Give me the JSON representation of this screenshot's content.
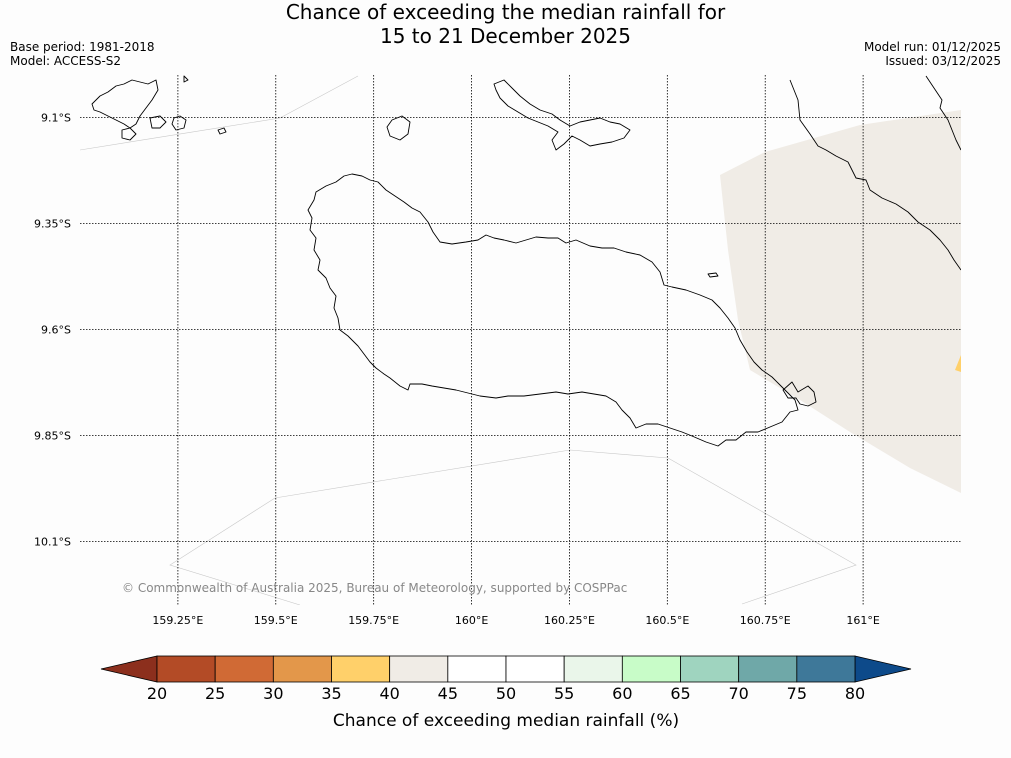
{
  "title": {
    "line1": "Chance of exceeding the median rainfall for",
    "line2": "15 to 21 December 2025"
  },
  "meta_left": {
    "base_period": "Base period: 1981-2018",
    "model": "Model: ACCESS-S2"
  },
  "meta_right": {
    "model_run": "Model run: 01/12/2025",
    "issued": "Issued: 03/12/2025"
  },
  "copyright": "© Commonwealth of Australia 2025, Bureau of Meteorology, supported by COSPPac",
  "map": {
    "lon_range": [
      159.0,
      161.25
    ],
    "lat_range": [
      -10.25,
      -9.0
    ],
    "lon_ticks": [
      159.25,
      159.5,
      159.75,
      160.0,
      160.25,
      160.5,
      160.75,
      161.0
    ],
    "lon_labels": [
      "159.25°E",
      "159.5°E",
      "159.75°E",
      "160°E",
      "160.25°E",
      "160.5°E",
      "160.75°E",
      "161°E"
    ],
    "lat_ticks": [
      -9.1,
      -9.35,
      -9.6,
      -9.85,
      -10.1
    ],
    "lat_labels": [
      "9.1°S",
      "9.35°S",
      "9.6°S",
      "9.85°S",
      "10.1°S"
    ]
  },
  "colorbar": {
    "label": "Chance of exceeding median rainfall (%)",
    "ticks": [
      "20",
      "25",
      "30",
      "35",
      "40",
      "45",
      "50",
      "55",
      "60",
      "65",
      "70",
      "75",
      "80"
    ],
    "low_color": "#8c2f1d",
    "high_color": "#0d4a8a",
    "colors": [
      "#b34b26",
      "#d06a35",
      "#e3974a",
      "#ffd06a",
      "#f0ece6",
      "#ffffff",
      "#ffffff",
      "#eaf6ea",
      "#c8fcc8",
      "#9fd4bf",
      "#6fa8a8",
      "#3e7899"
    ]
  },
  "shade_colors": {
    "region": "#f0ece6",
    "spot": "#ffd06a"
  }
}
